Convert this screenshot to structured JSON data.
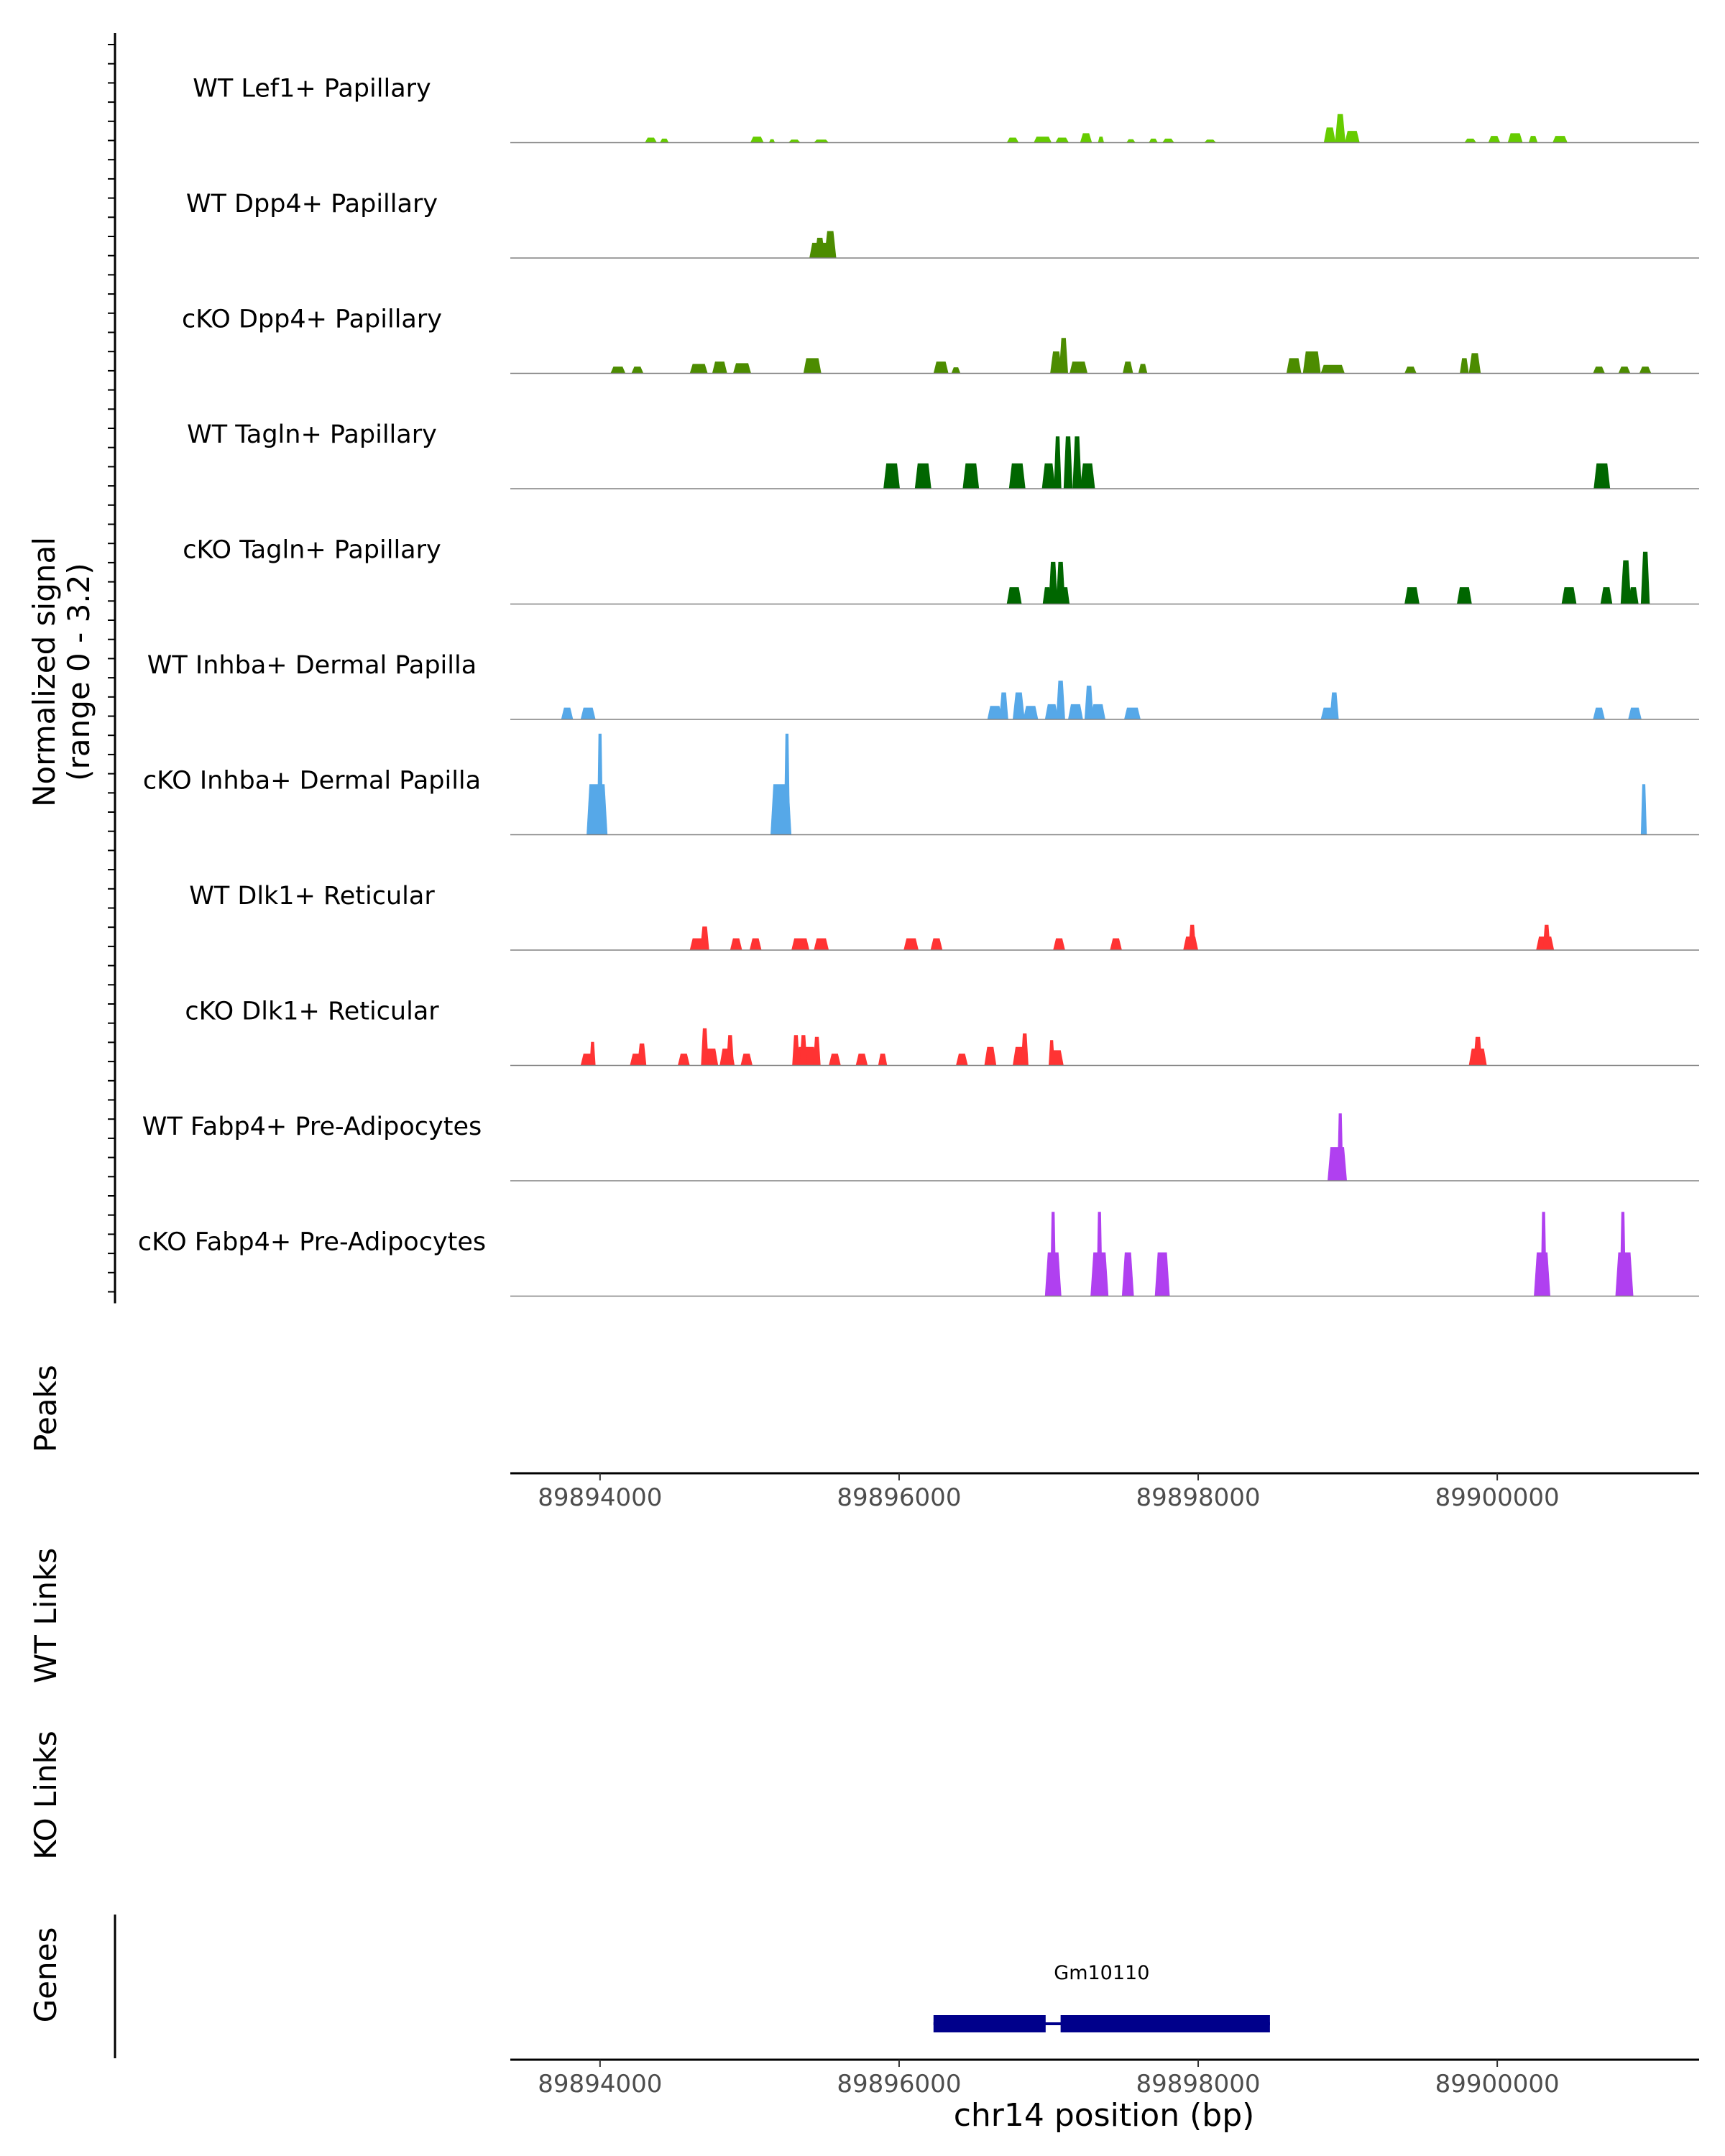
{
  "chart_data": {
    "type": "area",
    "title": "",
    "chromosome": "chr14",
    "xlabel": "chr14 position (bp)",
    "xlim": [
      89893400,
      89901350
    ],
    "x_ticks": [
      "89894000",
      "89896000",
      "89898000",
      "89900000"
    ],
    "signal_ylabel": "Normalized signal",
    "signal_ylabel2": "(range 0 - 3.2)",
    "ylim": [
      0,
      3.2
    ],
    "track_labels": {
      "peaks": "Peaks",
      "wt_links": "WT Links",
      "ko_links": "KO Links",
      "genes": "Genes"
    },
    "series": [
      {
        "name": "WT Lef1+ Papillary",
        "color": "#66cc00",
        "peaks": [
          [
            89894340,
            80,
            0.15
          ],
          [
            89894430,
            60,
            0.12
          ],
          [
            89895050,
            90,
            0.18
          ],
          [
            89895150,
            40,
            0.1
          ],
          [
            89895300,
            80,
            0.09
          ],
          [
            89895480,
            100,
            0.09
          ],
          [
            89896760,
            80,
            0.15
          ],
          [
            89896960,
            120,
            0.18
          ],
          [
            89897090,
            90,
            0.15
          ],
          [
            89897250,
            80,
            0.28
          ],
          [
            89897350,
            40,
            0.18
          ],
          [
            89897550,
            60,
            0.1
          ],
          [
            89897700,
            60,
            0.12
          ],
          [
            89897800,
            80,
            0.12
          ],
          [
            89898080,
            80,
            0.09
          ],
          [
            89898880,
            80,
            0.45
          ],
          [
            89898950,
            70,
            0.85
          ],
          [
            89899030,
            100,
            0.35
          ],
          [
            89899820,
            80,
            0.12
          ],
          [
            89899980,
            80,
            0.2
          ],
          [
            89900120,
            100,
            0.28
          ],
          [
            89900240,
            60,
            0.2
          ],
          [
            89900420,
            100,
            0.2
          ]
        ]
      },
      {
        "name": "WT Dpp4+ Papillary",
        "color": "#4c8c00",
        "peaks": [
          [
            89895470,
            70,
            0.6
          ],
          [
            89895540,
            80,
            0.8
          ],
          [
            89895480,
            160,
            0.45
          ]
        ]
      },
      {
        "name": "cKO Dpp4+ Papillary",
        "color": "#4c8c00",
        "peaks": [
          [
            89894120,
            100,
            0.2
          ],
          [
            89894250,
            80,
            0.2
          ],
          [
            89894660,
            120,
            0.28
          ],
          [
            89894800,
            100,
            0.35
          ],
          [
            89894950,
            120,
            0.3
          ],
          [
            89895420,
            120,
            0.45
          ],
          [
            89896280,
            100,
            0.35
          ],
          [
            89896380,
            60,
            0.18
          ],
          [
            89897050,
            80,
            0.65
          ],
          [
            89897100,
            60,
            1.05
          ],
          [
            89897200,
            120,
            0.35
          ],
          [
            89897530,
            70,
            0.35
          ],
          [
            89897630,
            60,
            0.28
          ],
          [
            89898640,
            100,
            0.45
          ],
          [
            89898760,
            120,
            0.65
          ],
          [
            89898900,
            160,
            0.25
          ],
          [
            89899420,
            80,
            0.2
          ],
          [
            89899780,
            60,
            0.45
          ],
          [
            89899850,
            80,
            0.6
          ],
          [
            89900680,
            80,
            0.2
          ],
          [
            89900850,
            80,
            0.2
          ],
          [
            89900990,
            80,
            0.2
          ]
        ]
      },
      {
        "name": "WT Tagln+ Papillary",
        "color": "#006600",
        "peaks": [
          [
            89895950,
            110,
            0.75
          ],
          [
            89896160,
            110,
            0.75
          ],
          [
            89896480,
            110,
            0.75
          ],
          [
            89896790,
            110,
            0.75
          ],
          [
            89897000,
            90,
            0.75
          ],
          [
            89897060,
            50,
            1.55
          ],
          [
            89897130,
            60,
            1.55
          ],
          [
            89897190,
            60,
            1.55
          ],
          [
            89897260,
            100,
            0.75
          ],
          [
            89900700,
            110,
            0.75
          ]
        ]
      },
      {
        "name": "cKO Tagln+ Papillary",
        "color": "#006600",
        "peaks": [
          [
            89896770,
            100,
            0.5
          ],
          [
            89896990,
            60,
            0.5
          ],
          [
            89897030,
            60,
            1.25
          ],
          [
            89897080,
            60,
            1.25
          ],
          [
            89897110,
            60,
            0.5
          ],
          [
            89899430,
            100,
            0.5
          ],
          [
            89899780,
            100,
            0.5
          ],
          [
            89900480,
            100,
            0.5
          ],
          [
            89900730,
            80,
            0.5
          ],
          [
            89900860,
            70,
            1.3
          ],
          [
            89900910,
            70,
            0.5
          ],
          [
            89900990,
            60,
            1.55
          ]
        ]
      },
      {
        "name": "WT Inhba+ Dermal Papilla",
        "color": "#56a8e8",
        "peaks": [
          [
            89893780,
            80,
            0.35
          ],
          [
            89893920,
            100,
            0.35
          ],
          [
            89896640,
            100,
            0.4
          ],
          [
            89896700,
            60,
            0.8
          ],
          [
            89896800,
            80,
            0.8
          ],
          [
            89896880,
            100,
            0.4
          ],
          [
            89897020,
            90,
            0.45
          ],
          [
            89897080,
            60,
            1.15
          ],
          [
            89897180,
            100,
            0.45
          ],
          [
            89897270,
            60,
            1.0
          ],
          [
            89897330,
            100,
            0.45
          ],
          [
            89897560,
            110,
            0.35
          ],
          [
            89898870,
            100,
            0.35
          ],
          [
            89898910,
            60,
            0.8
          ],
          [
            89900680,
            80,
            0.35
          ],
          [
            89900920,
            90,
            0.35
          ]
        ]
      },
      {
        "name": "cKO Inhba+ Dermal Papilla",
        "color": "#56a8e8",
        "peaks": [
          [
            89893980,
            140,
            1.5
          ],
          [
            89894000,
            40,
            3.0
          ],
          [
            89895210,
            140,
            1.5
          ],
          [
            89895250,
            40,
            3.0
          ],
          [
            89900980,
            40,
            1.5
          ]
        ]
      },
      {
        "name": "WT Dlk1+ Reticular",
        "color": "#ff3333",
        "peaks": [
          [
            89894650,
            100,
            0.35
          ],
          [
            89894700,
            60,
            0.7
          ],
          [
            89894910,
            80,
            0.35
          ],
          [
            89895040,
            80,
            0.35
          ],
          [
            89895340,
            120,
            0.35
          ],
          [
            89895480,
            100,
            0.35
          ],
          [
            89896080,
            100,
            0.35
          ],
          [
            89896250,
            80,
            0.35
          ],
          [
            89897070,
            80,
            0.35
          ],
          [
            89897450,
            80,
            0.35
          ],
          [
            89897950,
            100,
            0.4
          ],
          [
            89897960,
            50,
            0.75
          ],
          [
            89900320,
            120,
            0.4
          ],
          [
            89900330,
            50,
            0.75
          ]
        ]
      },
      {
        "name": "cKO Dlk1+ Reticular",
        "color": "#ff3333",
        "peaks": [
          [
            89893920,
            100,
            0.35
          ],
          [
            89893950,
            40,
            0.7
          ],
          [
            89894250,
            100,
            0.35
          ],
          [
            89894280,
            60,
            0.65
          ],
          [
            89894560,
            80,
            0.35
          ],
          [
            89894740,
            100,
            0.5
          ],
          [
            89894700,
            50,
            1.1
          ],
          [
            89894850,
            100,
            0.5
          ],
          [
            89894870,
            50,
            0.9
          ],
          [
            89894980,
            80,
            0.35
          ],
          [
            89895380,
            140,
            0.55
          ],
          [
            89895310,
            50,
            0.9
          ],
          [
            89895360,
            50,
            0.9
          ],
          [
            89895450,
            50,
            0.85
          ],
          [
            89895570,
            80,
            0.35
          ],
          [
            89895750,
            80,
            0.35
          ],
          [
            89895890,
            60,
            0.35
          ],
          [
            89896420,
            80,
            0.35
          ],
          [
            89896610,
            80,
            0.55
          ],
          [
            89896810,
            100,
            0.55
          ],
          [
            89896840,
            50,
            0.95
          ],
          [
            89897050,
            100,
            0.45
          ],
          [
            89897020,
            40,
            0.75
          ],
          [
            89899870,
            120,
            0.5
          ],
          [
            89899870,
            60,
            0.85
          ]
        ]
      },
      {
        "name": "WT Fabp4+ Pre-Adipocytes",
        "color": "#b040f0",
        "peaks": [
          [
            89898930,
            130,
            1.0
          ],
          [
            89898950,
            40,
            2.0
          ]
        ]
      },
      {
        "name": "cKO Fabp4+ Pre-Adipocytes",
        "color": "#b040f0",
        "peaks": [
          [
            89897030,
            110,
            1.3
          ],
          [
            89897030,
            40,
            2.5
          ],
          [
            89897340,
            120,
            1.3
          ],
          [
            89897340,
            40,
            2.5
          ],
          [
            89897530,
            80,
            1.3
          ],
          [
            89897760,
            100,
            1.3
          ],
          [
            89900300,
            110,
            1.3
          ],
          [
            89900310,
            40,
            2.5
          ],
          [
            89900850,
            120,
            1.3
          ],
          [
            89900840,
            40,
            2.5
          ]
        ]
      }
    ],
    "genes": [
      {
        "name": "Gm10110",
        "exons": [
          [
            89896230,
            89896980
          ],
          [
            89897080,
            89898480
          ]
        ]
      }
    ]
  }
}
